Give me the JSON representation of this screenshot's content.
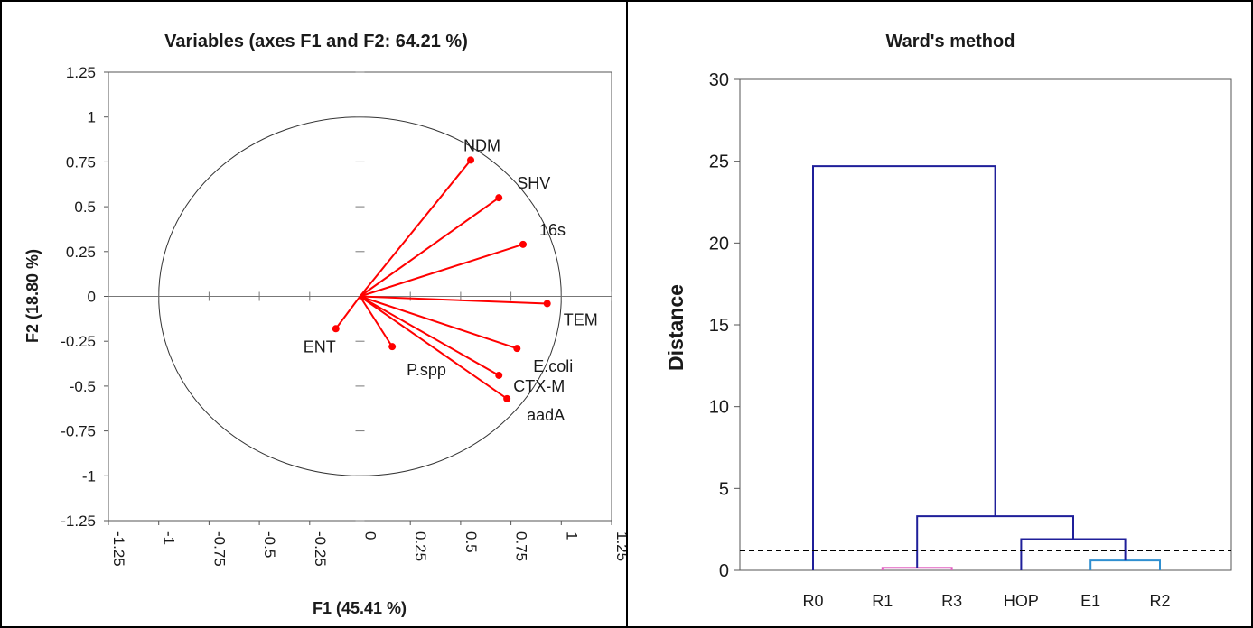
{
  "chart_data": [
    {
      "type": "scatter",
      "subtype": "pca-correlation-circle",
      "title": "Variables (axes F1 and F2: 64.21 %)",
      "xlabel": "F1 (45.41 %)",
      "ylabel": "F2 (18.80 %)",
      "xlim": [
        -1.25,
        1.25
      ],
      "ylim": [
        -1.25,
        1.25
      ],
      "x_ticks": [
        "-1.25",
        "-1",
        "-0.75",
        "-0.5",
        "-0.25",
        "0",
        "0.25",
        "0.5",
        "0.75",
        "1",
        "1.25"
      ],
      "y_ticks": [
        "1.25",
        "1",
        "0.75",
        "0.5",
        "0.25",
        "0",
        "-0.25",
        "-0.5",
        "-0.75",
        "-1",
        "-1.25"
      ],
      "vector_color": "#ff0000",
      "points": [
        {
          "label": "NDM",
          "x": 0.55,
          "y": 0.76
        },
        {
          "label": "SHV",
          "x": 0.69,
          "y": 0.55
        },
        {
          "label": "16s",
          "x": 0.81,
          "y": 0.29
        },
        {
          "label": "TEM",
          "x": 0.93,
          "y": -0.04
        },
        {
          "label": "E.coli",
          "x": 0.78,
          "y": -0.29
        },
        {
          "label": "CTX-M",
          "x": 0.69,
          "y": -0.44
        },
        {
          "label": "aadA",
          "x": 0.73,
          "y": -0.57
        },
        {
          "label": "P.spp",
          "x": 0.16,
          "y": -0.28
        },
        {
          "label": "ENT",
          "x": -0.12,
          "y": -0.18
        }
      ]
    },
    {
      "type": "dendrogram",
      "title": "Ward's method",
      "ylabel": "Distance",
      "ylim": [
        0,
        30
      ],
      "y_ticks": [
        "30",
        "25",
        "20",
        "15",
        "10",
        "5",
        "0"
      ],
      "leaves": [
        "R0",
        "R1",
        "R3",
        "HOP",
        "E1",
        "R2"
      ],
      "truncation_line": 1.2,
      "colors": {
        "main": "#1f1f9a",
        "r1r3": "#e060c0",
        "e1r2": "#2f8fd0"
      },
      "merges": [
        {
          "a": "E1",
          "b": "R2",
          "height": 0.6
        },
        {
          "a": "R1",
          "b": "R3",
          "height": 0.15
        },
        {
          "a": "HOP",
          "b": "E1+R2",
          "height": 1.9
        },
        {
          "a": "R1+R3",
          "b": "HOP+E1+R2",
          "height": 3.3
        },
        {
          "a": "R0",
          "b": "R1+R3+HOP+E1+R2",
          "height": 24.7
        }
      ]
    }
  ]
}
